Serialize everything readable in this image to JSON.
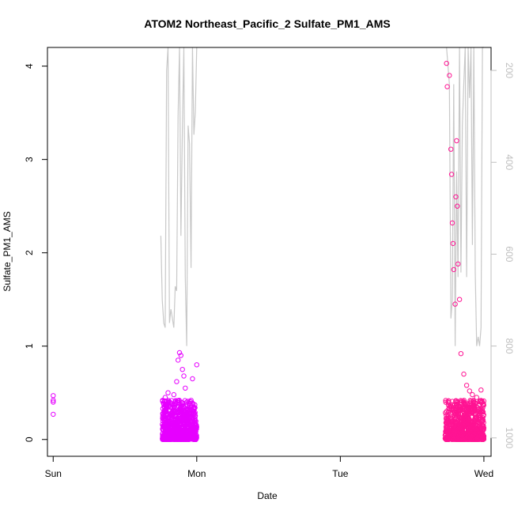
{
  "chart_data": {
    "type": "scatter",
    "title": "ATOM2 Northeast_Pacific_2 Sulfate_PM1_AMS",
    "xlabel": "Date",
    "ylabel": "Sulfate_PM1_AMS",
    "x_ticks": [
      "Sun",
      "Mon",
      "Tue",
      "Wed"
    ],
    "x_tick_values": [
      0,
      1,
      2,
      3
    ],
    "x_range": [
      -0.04,
      3.05
    ],
    "y_ticks": [
      "0",
      "1",
      "2",
      "3",
      "4"
    ],
    "y_tick_values": [
      0,
      1,
      2,
      3,
      4
    ],
    "y_range": [
      -0.18,
      4.2
    ],
    "right_axis_ticks": [
      "200",
      "400",
      "600",
      "800",
      "1000"
    ],
    "right_axis_tick_values": [
      200,
      400,
      600,
      800,
      1000
    ],
    "right_axis_range": [
      1040,
      150
    ],
    "right_axis_reversed": true,
    "grid": false,
    "legend": "none",
    "colors": {
      "low_points": "#e600ff",
      "high_points": "#ff1493",
      "pressure_line": "#c8c8c8",
      "frame": "#000000",
      "right_axis": "#bfbfbf"
    },
    "series": [
      {
        "kind": "points",
        "x": [
          0.0,
          0.0,
          0.0,
          0.0
        ],
        "y": [
          0.47,
          0.42,
          0.4,
          0.27
        ]
      },
      {
        "kind": "points",
        "x": [
          0.78,
          0.8,
          0.84,
          0.86,
          0.88,
          0.87,
          0.89,
          0.9,
          0.91,
          0.92,
          0.93,
          0.95,
          0.97,
          1.0
        ],
        "y": [
          0.45,
          0.5,
          0.48,
          0.62,
          0.93,
          0.85,
          0.9,
          0.75,
          0.68,
          0.55,
          0.4,
          0.3,
          0.65,
          0.8
        ]
      },
      {
        "kind": "points",
        "x": [
          2.74,
          2.745,
          2.76,
          2.77,
          2.775,
          2.78,
          2.785,
          2.79,
          2.8,
          2.805,
          2.81,
          2.815,
          2.82,
          2.83,
          2.84,
          2.86,
          2.88,
          2.9,
          2.92,
          2.95,
          2.98
        ],
        "y": [
          4.03,
          3.78,
          3.9,
          3.11,
          2.84,
          2.32,
          2.1,
          1.82,
          1.45,
          2.6,
          3.2,
          2.5,
          1.88,
          1.5,
          0.92,
          0.7,
          0.58,
          0.52,
          0.48,
          0.45,
          0.53
        ]
      },
      {
        "kind": "pressure_line",
        "x": [
          0.75,
          0.76,
          0.77,
          0.78,
          0.79,
          0.8,
          0.81,
          0.82,
          0.83,
          0.84,
          0.85,
          0.86,
          0.87,
          0.88,
          0.89,
          0.9,
          0.91,
          0.92,
          0.93,
          0.94,
          0.95,
          0.96,
          0.97,
          0.98,
          0.99,
          1.0
        ],
        "y": [
          560,
          700,
          750,
          760,
          200,
          150,
          750,
          720,
          740,
          760,
          670,
          680,
          300,
          150,
          560,
          320,
          150,
          650,
          800,
          320,
          360,
          630,
          150,
          340,
          290,
          150
        ]
      },
      {
        "kind": "pressure_line",
        "x": [
          2.74,
          2.76,
          2.77,
          2.78,
          2.79,
          2.8,
          2.81,
          2.82,
          2.83,
          2.84,
          2.85,
          2.86,
          2.87,
          2.88,
          2.89,
          2.9,
          2.91,
          2.92,
          2.93,
          2.94,
          2.95,
          2.96,
          2.97,
          2.98,
          2.99,
          3.0
        ],
        "y": [
          150,
          230,
          740,
          700,
          230,
          800,
          420,
          650,
          150,
          640,
          320,
          230,
          150,
          650,
          150,
          260,
          150,
          580,
          150,
          640,
          800,
          780,
          800,
          760,
          150,
          150
        ]
      }
    ]
  }
}
